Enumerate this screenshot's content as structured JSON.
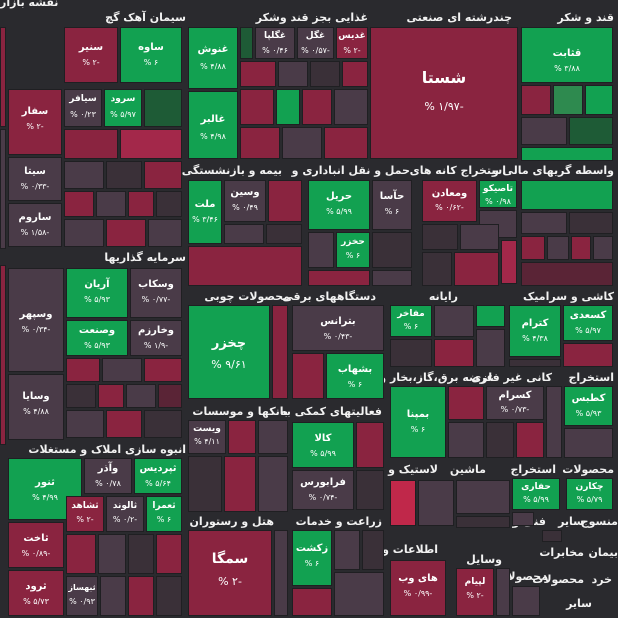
{
  "sectors": [
    {
      "id": "s1",
      "label": "قند و شکر"
    },
    {
      "id": "s2",
      "label": "چندرشته ای صنعتی"
    },
    {
      "id": "s3",
      "label": "غذایی بجز قند وشکر"
    },
    {
      "id": "s4",
      "label": "سیمان آهک گچ"
    },
    {
      "id": "s5",
      "label": "نقشه بازار"
    },
    {
      "id": "s6",
      "label": "واسطه گریهای مالی و"
    },
    {
      "id": "s7",
      "label": "استخراج کانه های"
    },
    {
      "id": "s8",
      "label": "حمل و نقل انباداری و"
    },
    {
      "id": "s9",
      "label": "بیمه و بازنشستگی"
    },
    {
      "id": "s10",
      "label": "سرمایه گذاریها"
    },
    {
      "id": "s11",
      "label": "کاشی و سرامیک"
    },
    {
      "id": "s12",
      "label": "رایانه"
    },
    {
      "id": "s13",
      "label": "دستگاههای برقی"
    },
    {
      "id": "s14",
      "label": "محصولات چوبی"
    },
    {
      "id": "s15",
      "label": "استخراج"
    },
    {
      "id": "s16",
      "label": "کانی غیر فلزی"
    },
    {
      "id": "s17",
      "label": "عرضه برق،گاز،بخار و"
    },
    {
      "id": "s18",
      "label": "بانکها و موسسات"
    },
    {
      "id": "s19",
      "label": "فعالیتهای کمکی به"
    },
    {
      "id": "s20",
      "label": "انبوه سازی املاک و مستغلات"
    },
    {
      "id": "s21",
      "label": "لاستیک و"
    },
    {
      "id": "s22",
      "label": "ماشین"
    },
    {
      "id": "s23",
      "label": "استخراج"
    },
    {
      "id": "s24",
      "label": "محصولات"
    },
    {
      "id": "s25",
      "label": "فنی و"
    },
    {
      "id": "s26",
      "label": "هتل و رستوران"
    },
    {
      "id": "s27",
      "label": "زراعت و خدمات"
    },
    {
      "id": "s28",
      "label": "منسوج"
    },
    {
      "id": "s29",
      "label": "ساير"
    },
    {
      "id": "s30",
      "label": "اطلاعات و"
    },
    {
      "id": "s31",
      "label": "وسایل"
    },
    {
      "id": "s32",
      "label": "بیمان"
    },
    {
      "id": "s33",
      "label": "مخابرات"
    },
    {
      "id": "s34",
      "label": "محصولات"
    },
    {
      "id": "s35",
      "label": "خرد"
    },
    {
      "id": "s36",
      "label": "محصولات"
    },
    {
      "id": "s37",
      "label": "ساير"
    }
  ],
  "tiles": [
    {
      "name": "قثابت",
      "pct": "۳/۸۸ %"
    },
    {
      "name": "شستا",
      "pct": "-۱/۹۷ %"
    },
    {
      "name": "غدیس",
      "pct": "-۲ %"
    },
    {
      "name": "غگل",
      "pct": "-۰/۵۷ %"
    },
    {
      "name": "غگلپا",
      "pct": "۰/۴۶ %"
    },
    {
      "name": "غنوش",
      "pct": "۴/۸۸ %"
    },
    {
      "name": "غالبر",
      "pct": "۴/۹۸ %"
    },
    {
      "name": "ساوه",
      "pct": "۶ %"
    },
    {
      "name": "سنیر",
      "pct": "-۲ %"
    },
    {
      "name": "سفار",
      "pct": "-۲ %"
    },
    {
      "name": "سیافر",
      "pct": "۰/۲۳ %"
    },
    {
      "name": "سرود",
      "pct": "۵/۹۷ %"
    },
    {
      "name": "سیتا",
      "pct": "-۰/۳۳ %"
    },
    {
      "name": "ساروم",
      "pct": "-۱/۵۸ %"
    },
    {
      "name": "تاصیکو",
      "pct": "۰/۹۸ %"
    },
    {
      "name": "ومعادن",
      "pct": "-۰/۶۲ %"
    },
    {
      "name": "حآسا",
      "pct": "۶ %"
    },
    {
      "name": "حریل",
      "pct": "۵/۹۹ %"
    },
    {
      "name": "حخزر",
      "pct": "۶ %"
    },
    {
      "name": "وسین",
      "pct": "۰/۴۹ %"
    },
    {
      "name": "ملت",
      "pct": "۳/۴۶ %"
    },
    {
      "name": "آریان",
      "pct": "۵/۹۳ %"
    },
    {
      "name": "وسکاب",
      "pct": "-۰/۷۷ %"
    },
    {
      "name": "وصنعت",
      "pct": "۵/۹۳ %"
    },
    {
      "name": "وخارزم",
      "pct": "-۱/۹ %"
    },
    {
      "name": "وسپهر",
      "pct": "-۰/۳۴ %"
    },
    {
      "name": "وسایا",
      "pct": "۴/۸۸ %"
    },
    {
      "name": "کسعدی",
      "pct": "۵/۹۷ %"
    },
    {
      "name": "کترام",
      "pct": "۴/۳۸ %"
    },
    {
      "name": "مفاخر",
      "pct": "۶ %"
    },
    {
      "name": "بترانس",
      "pct": "-۰/۴۳ %"
    },
    {
      "name": "بشهاب",
      "pct": "۶ %"
    },
    {
      "name": "چخزر",
      "pct": "۹/۶۱ %"
    },
    {
      "name": "کطبس",
      "pct": "۵/۹۳ %"
    },
    {
      "name": "کسرام",
      "pct": "-۰/۷۳ %"
    },
    {
      "name": "بمپنا",
      "pct": "۶ %"
    },
    {
      "name": "ویست",
      "pct": "۴/۱۱ %"
    },
    {
      "name": "کالا",
      "pct": "۵/۹۹ %"
    },
    {
      "name": "فرابورس",
      "pct": "-۰/۷۴ %"
    },
    {
      "name": "ثپردیس",
      "pct": "۵/۶۴ %"
    },
    {
      "name": "وآذر",
      "pct": "۰/۷۸ %"
    },
    {
      "name": "ثنور",
      "pct": "۴/۹۹ %"
    },
    {
      "name": "ثشاهد",
      "pct": "-۲ %"
    },
    {
      "name": "ثالوند",
      "pct": "-۰/۲ %"
    },
    {
      "name": "ثعمرا",
      "pct": "۶ %"
    },
    {
      "name": "ثاخت",
      "pct": "-۰/۸۹ %"
    },
    {
      "name": "ثرود",
      "pct": "۵/۷۳ %"
    },
    {
      "name": "ثبهساز",
      "pct": "۰/۹۳ %"
    },
    {
      "name": "سمگا",
      "pct": "-۲ %"
    },
    {
      "name": "زکشت",
      "pct": "۶ %"
    },
    {
      "name": "های وب",
      "pct": "-۰/۹۹ %"
    },
    {
      "name": "لپیام",
      "pct": "-۲ %"
    },
    {
      "name": "حفاری",
      "pct": "۵/۹۹ %"
    },
    {
      "name": "چکارن",
      "pct": "۵/۷۹ %"
    }
  ]
}
